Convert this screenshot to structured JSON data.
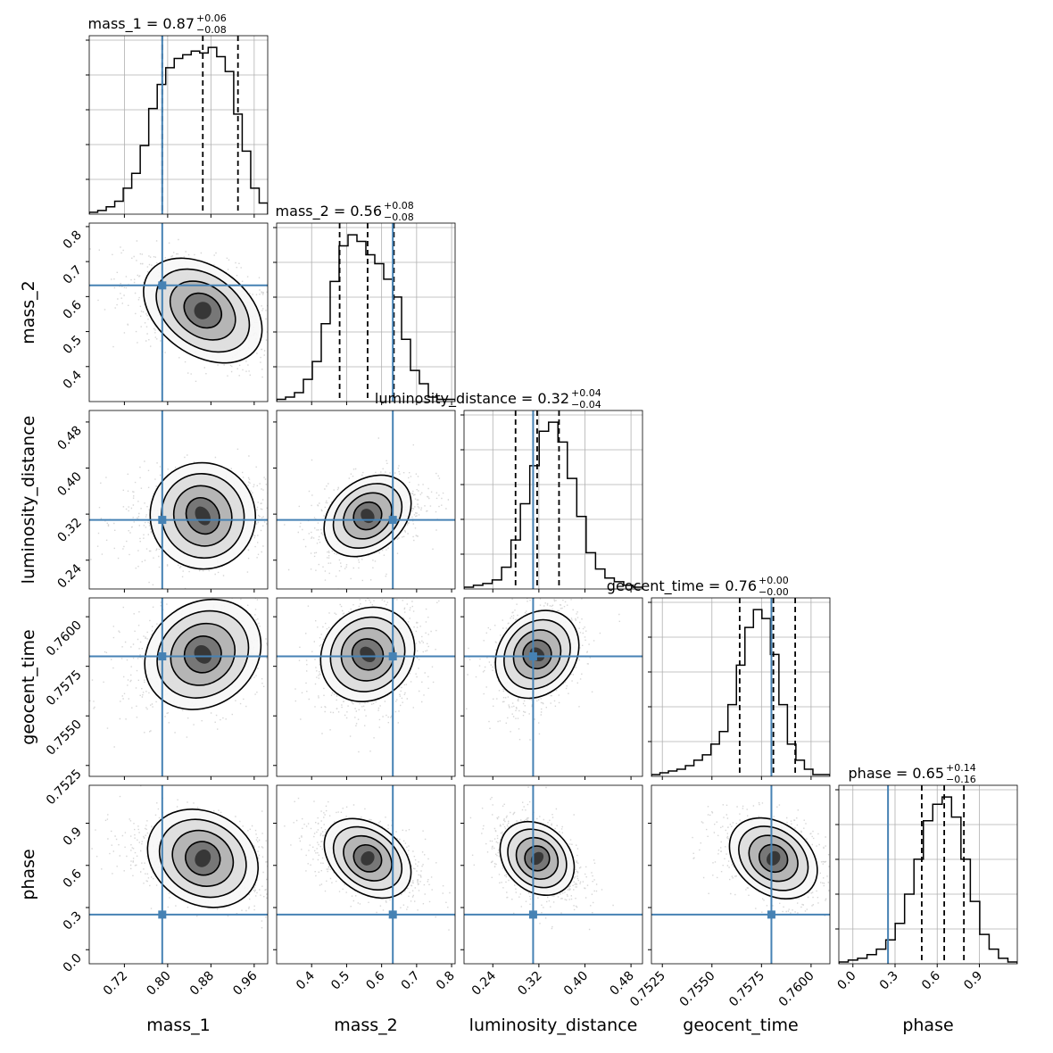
{
  "chart_data": {
    "type": "corner",
    "parameters": [
      {
        "name": "mass_1",
        "label": "mass_1",
        "range": [
          0.655,
          0.985
        ],
        "ticks": [
          0.72,
          0.8,
          0.88,
          0.96
        ],
        "tick_labels": [
          "0.72",
          "0.80",
          "0.88",
          "0.96"
        ],
        "truth": 0.79,
        "title_main": "mass_1 = 0.87",
        "title_sup": "+0.06",
        "title_sub": "−0.08",
        "quantiles": [
          0.79,
          0.865,
          0.93
        ],
        "hist": [
          1,
          2,
          4,
          7,
          14,
          22,
          37,
          57,
          70,
          79,
          84,
          86,
          88,
          87,
          90,
          85,
          77,
          54,
          34,
          14,
          6
        ]
      },
      {
        "name": "mass_2",
        "label": "mass_2",
        "range": [
          0.3,
          0.81
        ],
        "ticks": [
          0.4,
          0.5,
          0.6,
          0.7,
          0.8
        ],
        "tick_labels": [
          "0.4",
          "0.5",
          "0.6",
          "0.7",
          "0.8"
        ],
        "truth": 0.632,
        "title_main": "mass_2 = 0.56",
        "title_sup": "+0.08",
        "title_sub": "−0.08",
        "quantiles": [
          0.48,
          0.56,
          0.635
        ],
        "hist": [
          1,
          2,
          4,
          10,
          18,
          35,
          54,
          70,
          75,
          72,
          66,
          62,
          55,
          47,
          28,
          14,
          8,
          2,
          1,
          1
        ]
      },
      {
        "name": "luminosity_distance",
        "label": "luminosity_distance",
        "range": [
          0.19,
          0.5
        ],
        "ticks": [
          0.24,
          0.32,
          0.4,
          0.48
        ],
        "tick_labels": [
          "0.24",
          "0.32",
          "0.40",
          "0.48"
        ],
        "truth": 0.31,
        "title_main": "luminosity_distance = 0.32",
        "title_sup": "+0.04",
        "title_sub": "−0.04",
        "quantiles": [
          0.2795,
          0.317,
          0.355
        ],
        "hist": [
          1,
          2,
          3,
          5,
          12,
          27,
          47,
          68,
          87,
          92,
          81,
          61,
          40,
          20,
          11,
          6,
          4,
          2,
          1
        ]
      },
      {
        "name": "geocent_time",
        "label": "geocent_time",
        "range": [
          0.75195,
          0.76095
        ],
        "ticks": [
          0.7525,
          0.755,
          0.7575,
          0.76
        ],
        "tick_labels": [
          "0.7525",
          "0.7550",
          "0.7575",
          "0.7600"
        ],
        "truth": 0.758,
        "title_main": "geocent_time = 0.76",
        "title_sup": "+0.00",
        "title_sub": "−0.00",
        "quantiles": [
          0.7564,
          0.7581,
          0.7592
        ],
        "hist": [
          1,
          2,
          3,
          4,
          6,
          9,
          12,
          18,
          25,
          40,
          62,
          83,
          93,
          88,
          68,
          40,
          18,
          9,
          4,
          1,
          1
        ]
      },
      {
        "name": "phase",
        "label": "phase",
        "range": [
          -0.1,
          1.17
        ],
        "ticks": [
          0.0,
          0.3,
          0.6,
          0.9
        ],
        "tick_labels": [
          "0.0",
          "0.3",
          "0.6",
          "0.9"
        ],
        "truth": 0.25,
        "title_main": "phase = 0.65",
        "title_sup": "+0.14",
        "title_sub": "−0.16",
        "quantiles": [
          0.49,
          0.65,
          0.79
        ],
        "hist": [
          1,
          2,
          3,
          5,
          8,
          13,
          22,
          38,
          57,
          78,
          87,
          91,
          80,
          57,
          34,
          16,
          8,
          3,
          1
        ]
      }
    ],
    "correlations": [
      [
        1,
        -0.45,
        0.05,
        0.25,
        -0.3
      ],
      [
        -0.45,
        1,
        0.4,
        0.2,
        -0.45
      ],
      [
        0.05,
        0.4,
        1,
        0.3,
        -0.35
      ],
      [
        0.25,
        0.2,
        0.3,
        1,
        -0.4
      ],
      [
        -0.3,
        -0.45,
        -0.35,
        -0.4,
        1
      ]
    ],
    "truth_color": "#4682b4",
    "contour_color": "#000000",
    "grid": true
  }
}
